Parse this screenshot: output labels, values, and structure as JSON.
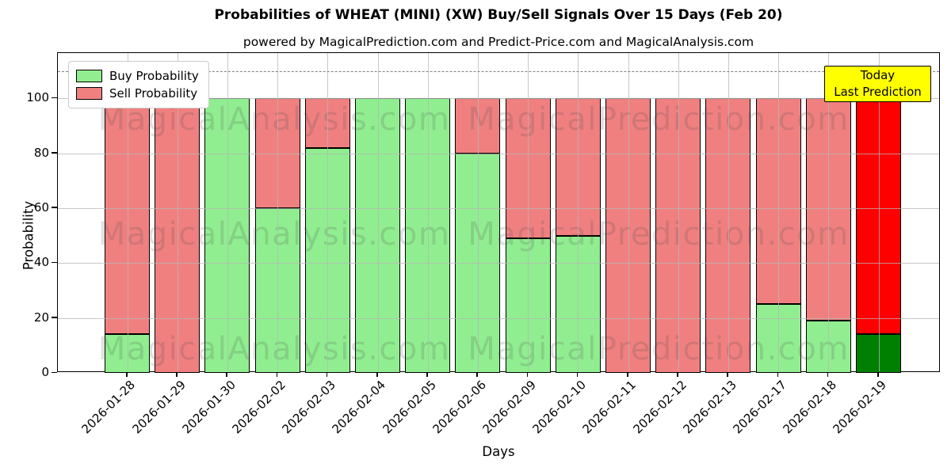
{
  "header": {
    "title": "Probabilities of WHEAT (MINI) (XW) Buy/Sell Signals Over 15 Days (Feb 20)",
    "subtitle": "powered by MagicalPrediction.com and Predict-Price.com and MagicalAnalysis.com"
  },
  "chart_data": {
    "type": "bar",
    "stacked": true,
    "title": "Probabilities of WHEAT (MINI) (XW) Buy/Sell Signals Over 15 Days (Feb 20)",
    "xlabel": "Days",
    "ylabel": "Probability",
    "categories": [
      "2026-01-28",
      "2026-01-29",
      "2026-01-30",
      "2026-02-02",
      "2026-02-03",
      "2026-02-04",
      "2026-02-05",
      "2026-02-06",
      "2026-02-09",
      "2026-02-10",
      "2026-02-11",
      "2026-02-12",
      "2026-02-13",
      "2026-02-17",
      "2026-02-18",
      "2026-02-19"
    ],
    "series": [
      {
        "name": "Buy Probability",
        "color": "#90EE90",
        "values": [
          14,
          0,
          100,
          60,
          82,
          100,
          100,
          80,
          49,
          50,
          0,
          0,
          0,
          25,
          19,
          14
        ]
      },
      {
        "name": "Sell Probability",
        "color": "#F08080",
        "values": [
          86,
          100,
          0,
          40,
          18,
          0,
          0,
          20,
          51,
          50,
          100,
          100,
          100,
          75,
          81,
          86
        ]
      }
    ],
    "today_index": 15,
    "today_colors": {
      "buy": "#008000",
      "sell": "#FF0000"
    },
    "annotation": {
      "line1": "Today",
      "line2": "Last Prediction",
      "bg_color": "#FFFF00"
    },
    "dashed_line_y": 110,
    "yticks": [
      0,
      20,
      40,
      60,
      80,
      100
    ],
    "ylim": [
      0,
      116.5
    ],
    "grid": true,
    "legend_position": "upper left",
    "watermarks": {
      "left": "MagicalAnalysis.com",
      "right": "MagicalPrediction.com"
    }
  }
}
